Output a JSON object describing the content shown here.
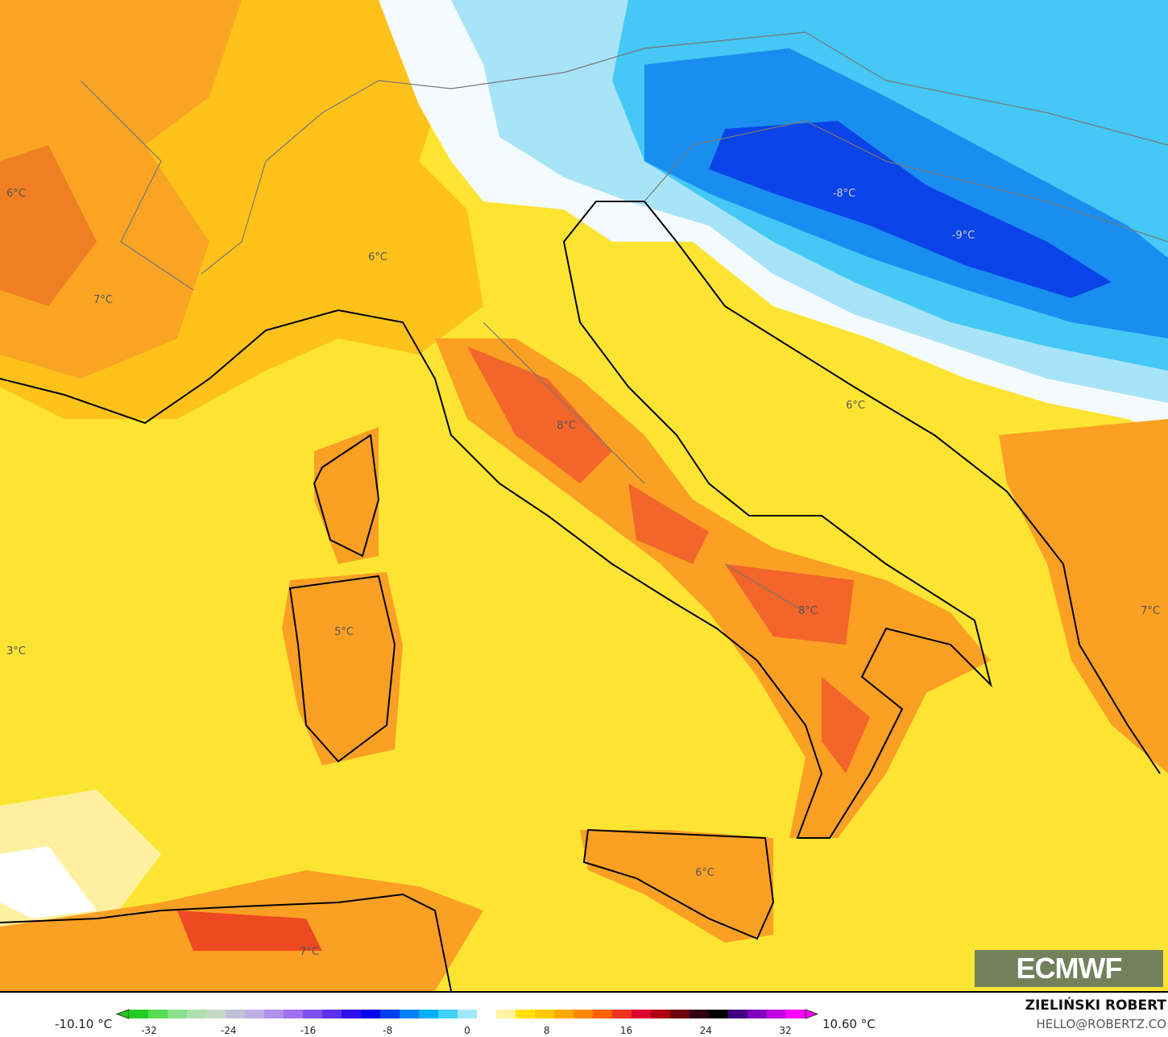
{
  "map": {
    "labels": [
      {
        "text": "6°C",
        "cold": false
      },
      {
        "text": "7°C",
        "cold": false
      },
      {
        "text": "6°C",
        "cold": false
      },
      {
        "text": "-8°C",
        "cold": true
      },
      {
        "text": "-9°C",
        "cold": true
      },
      {
        "text": "8°C",
        "cold": false
      },
      {
        "text": "6°C",
        "cold": false
      },
      {
        "text": "5°C",
        "cold": false
      },
      {
        "text": "3°C",
        "cold": false
      },
      {
        "text": "8°C",
        "cold": false
      },
      {
        "text": "7°C",
        "cold": false
      },
      {
        "text": "6°C",
        "cold": false
      },
      {
        "text": "7°C",
        "cold": false
      }
    ],
    "logo_text": "ECMWF"
  },
  "legend": {
    "min_label": "-10.10 °C",
    "max_label": "10.60 °C",
    "ticks": [
      "-32",
      "-24",
      "-16",
      "-8",
      "0",
      "8",
      "16",
      "24",
      "32"
    ],
    "colors": [
      "#22cc22",
      "#55dd55",
      "#88e088",
      "#b0e0b0",
      "#c8d8c8",
      "#c0c0d8",
      "#c0b0e8",
      "#b090e8",
      "#a070f0",
      "#8050f0",
      "#6030f0",
      "#3010f0",
      "#0000f0",
      "#0040f0",
      "#0080f8",
      "#00b0f8",
      "#40d0f8",
      "#a0e8f8",
      "#ffffff",
      "#fff4a0",
      "#ffe000",
      "#ffc800",
      "#ffa800",
      "#ff8800",
      "#ff6000",
      "#f03020",
      "#e00030",
      "#b00010",
      "#700010",
      "#300010",
      "#000000",
      "#400080",
      "#8000c0",
      "#c000e0",
      "#ff00ff"
    ]
  },
  "credits": {
    "author": "ZIELIŃSKI ROBERT",
    "email": "HELLO@ROBERTZ.CO"
  }
}
